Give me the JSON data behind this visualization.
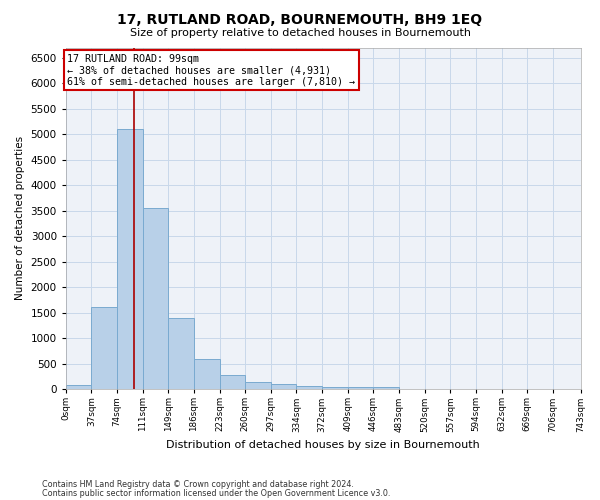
{
  "title": "17, RUTLAND ROAD, BOURNEMOUTH, BH9 1EQ",
  "subtitle": "Size of property relative to detached houses in Bournemouth",
  "xlabel": "Distribution of detached houses by size in Bournemouth",
  "ylabel": "Number of detached properties",
  "footnote1": "Contains HM Land Registry data © Crown copyright and database right 2024.",
  "footnote2": "Contains public sector information licensed under the Open Government Licence v3.0.",
  "bar_color": "#b8d0e8",
  "bar_edge_color": "#7aaad0",
  "grid_color": "#c8d8ea",
  "annotation_box_color": "#cc0000",
  "annotation_text": "17 RUTLAND ROAD: 99sqm\n← 38% of detached houses are smaller (4,931)\n61% of semi-detached houses are larger (7,810) →",
  "property_line_x": 99,
  "property_line_color": "#aa0000",
  "bin_edges": [
    0,
    37,
    74,
    111,
    148,
    185,
    222,
    259,
    296,
    333,
    370,
    407,
    444,
    481,
    518,
    555,
    592,
    629,
    666,
    703,
    743
  ],
  "bin_labels": [
    "0sqm",
    "37sqm",
    "74sqm",
    "111sqm",
    "149sqm",
    "186sqm",
    "223sqm",
    "260sqm",
    "297sqm",
    "334sqm",
    "372sqm",
    "409sqm",
    "446sqm",
    "483sqm",
    "520sqm",
    "557sqm",
    "594sqm",
    "632sqm",
    "669sqm",
    "706sqm",
    "743sqm"
  ],
  "bar_heights": [
    80,
    1620,
    5100,
    3550,
    1400,
    600,
    280,
    145,
    95,
    70,
    50,
    50,
    50,
    0,
    0,
    0,
    0,
    0,
    0,
    0
  ],
  "ylim": [
    0,
    6700
  ],
  "yticks": [
    0,
    500,
    1000,
    1500,
    2000,
    2500,
    3000,
    3500,
    4000,
    4500,
    5000,
    5500,
    6000,
    6500
  ],
  "background_color": "#eef2f8"
}
